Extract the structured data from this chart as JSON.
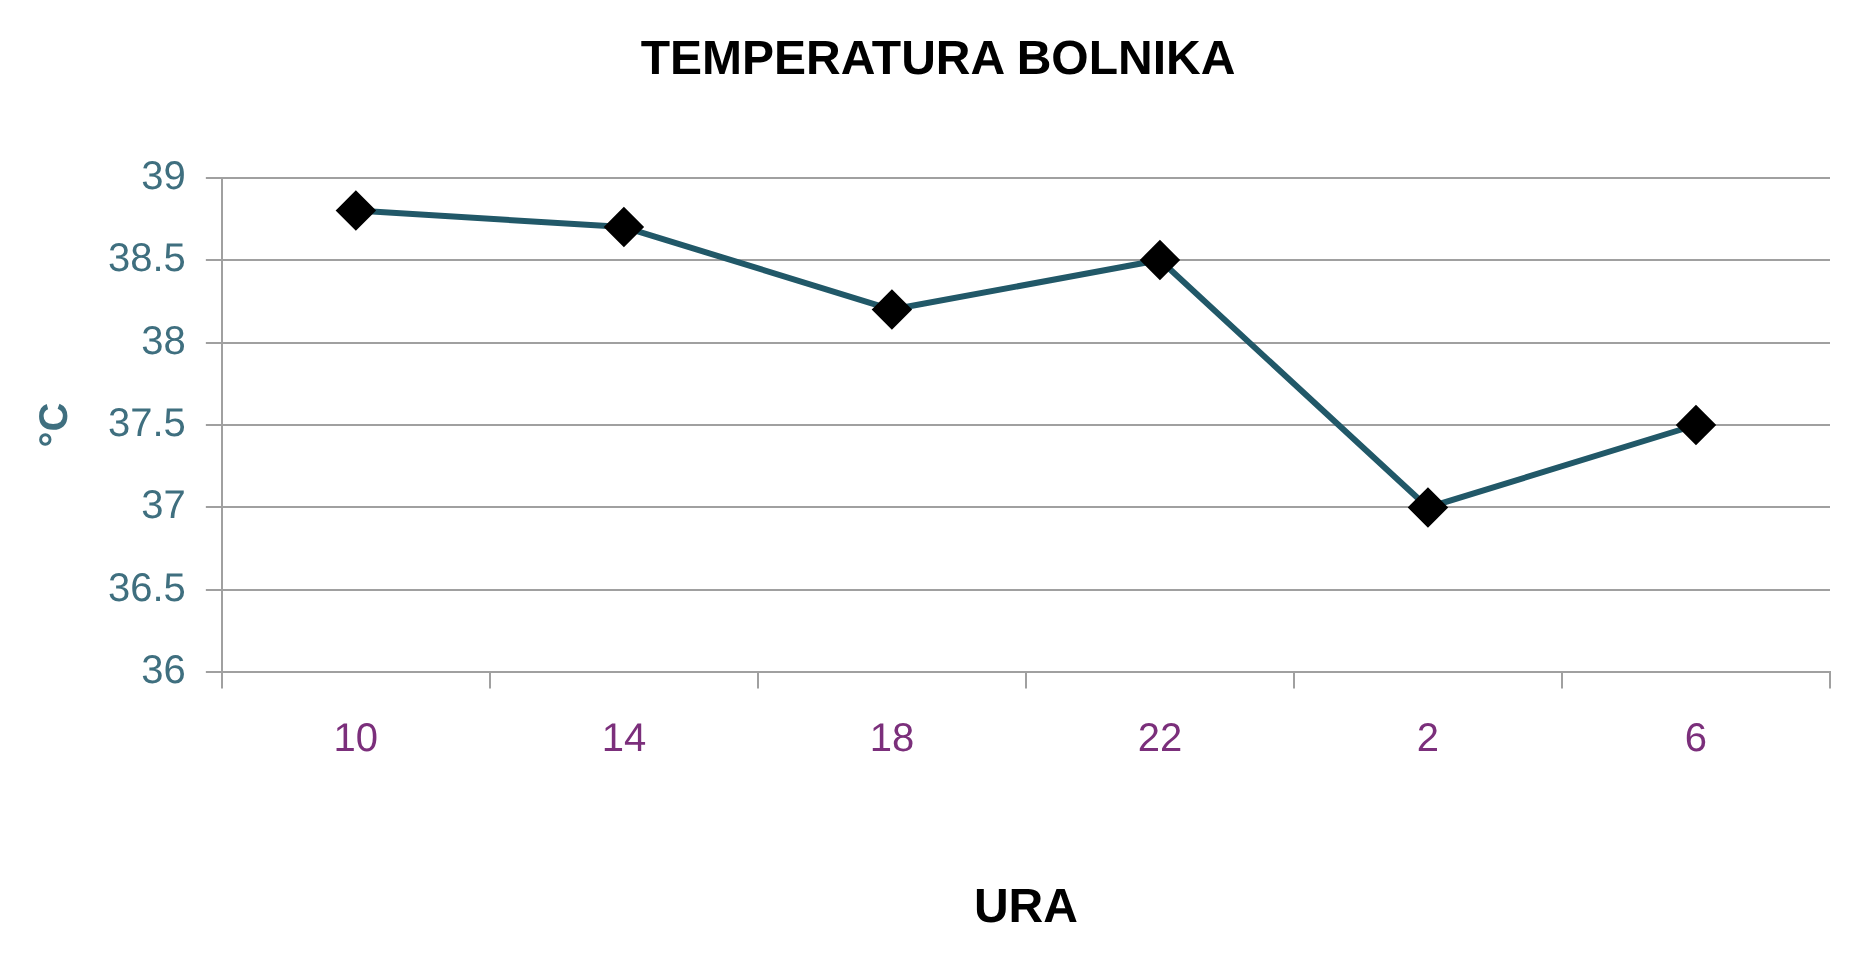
{
  "chart_data": {
    "type": "line",
    "title": "TEMPERATURA BOLNIKA",
    "xlabel": "URA",
    "ylabel": "°C",
    "categories": [
      "10",
      "14",
      "18",
      "22",
      "2",
      "6"
    ],
    "series": [
      {
        "color": "#215868",
        "values": [
          38.8,
          38.7,
          38.2,
          38.5,
          37.0,
          37.5
        ]
      }
    ],
    "ylim": [
      36,
      39
    ],
    "yticks": [
      36,
      36.5,
      37,
      37.5,
      38,
      38.5,
      39
    ],
    "grid": "y",
    "legend": false,
    "marker": "diamond",
    "line_style": "solid"
  }
}
